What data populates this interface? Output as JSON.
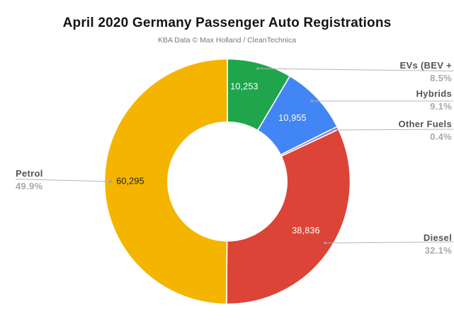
{
  "header": {
    "title": "April 2020 Germany Passenger Auto Registrations",
    "subtitle": "KBA Data © Max Holland / CleanTechnica"
  },
  "chart_data": {
    "type": "pie",
    "subtype": "donut",
    "title": "April 2020 Germany Passenger Auto Registrations",
    "source_note": "KBA Data © Max Holland / CleanTechnica",
    "donut_hole_ratio": 0.485,
    "start_angle_deg": 0,
    "direction": "clockwise",
    "legend_position": "outside-callouts",
    "slices": [
      {
        "label": "EVs (BEV +",
        "value": 10253,
        "value_label": "10,253",
        "percent": 8.5,
        "percent_label": "8.5%",
        "color": "#1fa64c",
        "callout_side": "right"
      },
      {
        "label": "Hybrids",
        "value": 10955,
        "value_label": "10,955",
        "percent": 9.1,
        "percent_label": "9.1%",
        "color": "#4285f4",
        "callout_side": "right"
      },
      {
        "label": "Other Fuels",
        "value_label": "",
        "percent": 0.4,
        "percent_label": "0.4%",
        "color": "#8e7cc3",
        "callout_side": "right"
      },
      {
        "label": "Diesel",
        "value": 38836,
        "value_label": "38,836",
        "percent": 32.1,
        "percent_label": "32.1%",
        "color": "#db4437",
        "callout_side": "right"
      },
      {
        "label": "Petrol",
        "value": 60295,
        "value_label": "60,295",
        "percent": 49.9,
        "percent_label": "49.9%",
        "color": "#f4b400",
        "callout_side": "left"
      }
    ],
    "colors": {
      "leader_line": "#b5b5b5",
      "leader_dot": "#9e9e9e",
      "slice_border": "#ffffff",
      "value_text_light": "#ffffff",
      "value_text_dark": "#1c1c1c"
    }
  }
}
